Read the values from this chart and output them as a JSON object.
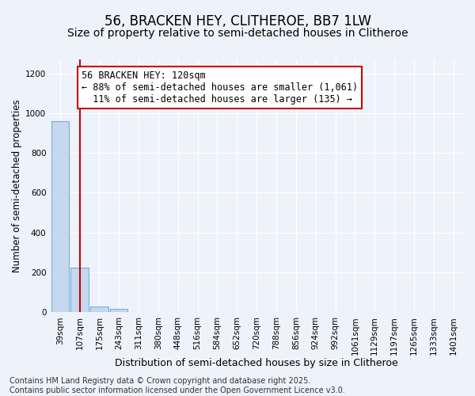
{
  "title": "56, BRACKEN HEY, CLITHEROE, BB7 1LW",
  "subtitle": "Size of property relative to semi-detached houses in Clitheroe",
  "xlabel": "Distribution of semi-detached houses by size in Clitheroe",
  "ylabel": "Number of semi-detached properties",
  "categories": [
    "39sqm",
    "107sqm",
    "175sqm",
    "243sqm",
    "311sqm",
    "380sqm",
    "448sqm",
    "516sqm",
    "584sqm",
    "652sqm",
    "720sqm",
    "788sqm",
    "856sqm",
    "924sqm",
    "992sqm",
    "1061sqm",
    "1129sqm",
    "1197sqm",
    "1265sqm",
    "1333sqm",
    "1401sqm"
  ],
  "values": [
    960,
    225,
    30,
    15,
    0,
    0,
    0,
    0,
    0,
    0,
    0,
    0,
    0,
    0,
    0,
    0,
    0,
    0,
    0,
    0,
    0
  ],
  "bar_color": "#c5d8f0",
  "bar_edge_color": "#7bafd4",
  "vline_x": 1.0,
  "annotation_line1": "56 BRACKEN HEY: 120sqm",
  "annotation_line2": "← 88% of semi-detached houses are smaller (1,061)",
  "annotation_line3": "  11% of semi-detached houses are larger (135) →",
  "annotation_box_facecolor": "#ffffff",
  "annotation_box_edgecolor": "#cc0000",
  "vline_color": "#cc0000",
  "ylim": [
    0,
    1270
  ],
  "yticks": [
    0,
    200,
    400,
    600,
    800,
    1000,
    1200
  ],
  "background_color": "#eef2fa",
  "grid_color": "#ffffff",
  "footer_text": "Contains HM Land Registry data © Crown copyright and database right 2025.\nContains public sector information licensed under the Open Government Licence v3.0.",
  "title_fontsize": 12,
  "subtitle_fontsize": 10,
  "xlabel_fontsize": 9,
  "ylabel_fontsize": 8.5,
  "tick_fontsize": 7.5,
  "annotation_fontsize": 8.5,
  "footer_fontsize": 7
}
